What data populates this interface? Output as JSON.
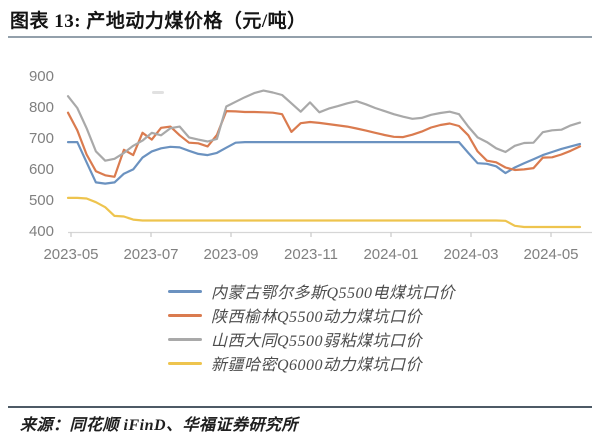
{
  "header": {
    "title": "图表 13: 产地动力煤价格（元/吨）"
  },
  "footer": {
    "source": "来源：同花顺 iFinD、华福证券研究所"
  },
  "colors": {
    "background": "#ffffff",
    "title_text": "#141414",
    "title_rule": "#93a0ab",
    "footer_rule": "#4d5a66",
    "axis_label": "#808080",
    "axis_line": "#d6d6d6",
    "tick": "#c9c9c9",
    "legend_text": "#4d4d4d"
  },
  "chart_data": {
    "type": "line",
    "title": "产地动力煤价格（元/吨）",
    "xlabel": "",
    "ylabel": "元/吨",
    "ylim": [
      400,
      900
    ],
    "y_ticks": [
      400,
      500,
      600,
      700,
      800,
      900
    ],
    "x_tick_labels": [
      "2023-05",
      "2023-07",
      "2023-09",
      "2023-11",
      "2024-01",
      "2024-03",
      "2024-05"
    ],
    "grid": false,
    "legend_position": "bottom-center",
    "sampling": "weekly, 2023-05 through mid 2024-05 (56 points per series)",
    "series": [
      {
        "name": "内蒙古鄂尔多斯Q5500电煤坑口价",
        "color": "#6b92c0",
        "values": [
          690,
          690,
          625,
          560,
          556,
          560,
          588,
          602,
          640,
          660,
          670,
          675,
          673,
          662,
          652,
          648,
          655,
          672,
          688,
          690,
          690,
          690,
          690,
          690,
          690,
          690,
          690,
          690,
          690,
          690,
          690,
          690,
          690,
          690,
          690,
          690,
          690,
          690,
          690,
          690,
          690,
          690,
          690,
          655,
          622,
          620,
          612,
          590,
          608,
          622,
          635,
          648,
          658,
          668,
          676,
          684
        ]
      },
      {
        "name": "陕西榆林Q5500动力煤坑口价",
        "color": "#da7b4f",
        "values": [
          785,
          728,
          650,
          596,
          583,
          578,
          665,
          648,
          720,
          698,
          736,
          740,
          712,
          688,
          686,
          676,
          713,
          790,
          789,
          787,
          787,
          786,
          785,
          780,
          723,
          751,
          755,
          752,
          748,
          744,
          740,
          734,
          727,
          720,
          713,
          707,
          706,
          714,
          724,
          737,
          745,
          750,
          742,
          712,
          660,
          630,
          625,
          608,
          600,
          602,
          606,
          640,
          641,
          650,
          662,
          676
        ]
      },
      {
        "name": "山西大同Q5500弱粘煤坑口价",
        "color": "#a9a9a9",
        "values": [
          838,
          800,
          735,
          660,
          630,
          636,
          655,
          678,
          695,
          720,
          712,
          735,
          740,
          705,
          698,
          692,
          700,
          805,
          820,
          835,
          848,
          856,
          850,
          842,
          815,
          788,
          818,
          786,
          798,
          806,
          815,
          822,
          812,
          800,
          790,
          780,
          772,
          765,
          768,
          778,
          784,
          788,
          780,
          740,
          705,
          690,
          670,
          658,
          678,
          687,
          688,
          722,
          728,
          730,
          744,
          753
        ]
      },
      {
        "name": "新疆哈密Q6000动力煤坑口价",
        "color": "#eec44e",
        "values": [
          510,
          510,
          508,
          496,
          480,
          452,
          450,
          440,
          437,
          437,
          437,
          437,
          437,
          437,
          437,
          437,
          437,
          437,
          437,
          437,
          437,
          437,
          437,
          437,
          437,
          437,
          437,
          437,
          437,
          437,
          437,
          437,
          437,
          437,
          437,
          437,
          437,
          437,
          437,
          437,
          437,
          437,
          437,
          437,
          437,
          437,
          437,
          436,
          420,
          416,
          416,
          416,
          416,
          416,
          416,
          416
        ]
      }
    ]
  }
}
